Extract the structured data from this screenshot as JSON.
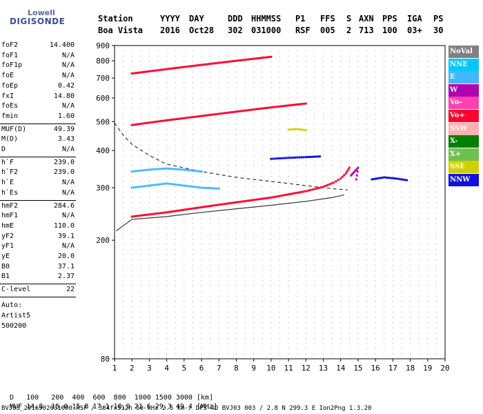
{
  "logo": {
    "line1": "Lowell",
    "line2": "DIGISONDE"
  },
  "header": {
    "row1": [
      "Station",
      "YYYY",
      "DAY",
      "DDD",
      "HHMMSS",
      "P1",
      "FFS",
      "S",
      "AXN",
      "PPS",
      "IGA",
      "PS"
    ],
    "row2": [
      "Boa Vista",
      "2016",
      "Oct28",
      "302",
      "031000",
      "RSF",
      "005",
      "2",
      "713",
      "100",
      "03+",
      "30"
    ]
  },
  "params": {
    "group1": [
      {
        "name": "foF2",
        "value": "14.400"
      },
      {
        "name": "foF1",
        "value": "N/A"
      },
      {
        "name": "foF1p",
        "value": "N/A"
      },
      {
        "name": "foE",
        "value": "N/A"
      },
      {
        "name": "foEp",
        "value": "0.42"
      },
      {
        "name": "fxI",
        "value": "14.80"
      },
      {
        "name": "foEs",
        "value": "N/A"
      },
      {
        "name": "fmin",
        "value": "1.60"
      }
    ],
    "group2": [
      {
        "name": "MUF(D)",
        "value": "49.39"
      },
      {
        "name": "M(D)",
        "value": "3.43"
      },
      {
        "name": "D",
        "value": "N/A"
      }
    ],
    "group3": [
      {
        "name": "h`F",
        "value": "239.0"
      },
      {
        "name": "h`F2",
        "value": "239.0"
      },
      {
        "name": "h`E",
        "value": "N/A"
      },
      {
        "name": "h`Es",
        "value": "N/A"
      }
    ],
    "group4": [
      {
        "name": "hmF2",
        "value": "284.6"
      },
      {
        "name": "hmF1",
        "value": "N/A"
      },
      {
        "name": "hmE",
        "value": "110.0"
      },
      {
        "name": "yF2",
        "value": "39.1"
      },
      {
        "name": "yF1",
        "value": "N/A"
      },
      {
        "name": "yE",
        "value": "20.0"
      },
      {
        "name": "B0",
        "value": "37.1"
      },
      {
        "name": "B1",
        "value": "2.37"
      }
    ],
    "group5": [
      {
        "name": "C-level",
        "value": "22"
      }
    ],
    "auto": [
      "Auto:",
      "Artist5",
      "500200"
    ]
  },
  "chart_data": {
    "type": "scatter",
    "title": "",
    "xlabel": "",
    "ylabel": "",
    "xlim": [
      1,
      20
    ],
    "ylim": [
      80,
      900
    ],
    "yscale": "log",
    "x_ticks": [
      1,
      2,
      3,
      4,
      5,
      6,
      7,
      8,
      9,
      10,
      11,
      12,
      13,
      14,
      15,
      16,
      17,
      18,
      19,
      20
    ],
    "y_ticks": [
      80,
      200,
      300,
      400,
      500,
      600,
      700,
      800,
      900
    ],
    "grid": true,
    "legend_position": "right",
    "legend": [
      {
        "label": "NoVal",
        "color": "#808080"
      },
      {
        "label": "NNE",
        "color": "#00c8ff"
      },
      {
        "label": "E",
        "color": "#40b8ff"
      },
      {
        "label": "W",
        "color": "#b000b0"
      },
      {
        "label": "Vo-",
        "color": "#ff40b0"
      },
      {
        "label": "Vo+",
        "color": "#ff0030"
      },
      {
        "label": "SSW",
        "color": "#ffb0b0"
      },
      {
        "label": "X-",
        "color": "#008000"
      },
      {
        "label": "X+",
        "color": "#70c050"
      },
      {
        "label": "SSE",
        "color": "#d0d000"
      },
      {
        "label": "NNW",
        "color": "#1010e0"
      }
    ],
    "traces": [
      {
        "name": "Vo+",
        "color": "#ff0030",
        "points": [
          [
            2.0,
            240
          ],
          [
            4.0,
            248
          ],
          [
            6.0,
            258
          ],
          [
            8.0,
            268
          ],
          [
            10.0,
            278
          ],
          [
            12.0,
            292
          ],
          [
            13.0,
            302
          ],
          [
            13.6,
            312
          ],
          [
            14.0,
            322
          ],
          [
            14.3,
            335
          ],
          [
            14.5,
            350
          ]
        ]
      },
      {
        "name": "Vo+",
        "color": "#ff0030",
        "points": [
          [
            2.0,
            487
          ],
          [
            4.0,
            505
          ],
          [
            6.0,
            522
          ],
          [
            8.0,
            540
          ],
          [
            10.0,
            558
          ],
          [
            12.0,
            575
          ]
        ]
      },
      {
        "name": "Vo+",
        "color": "#ff0030",
        "points": [
          [
            2.0,
            725
          ],
          [
            4.0,
            750
          ],
          [
            6.0,
            775
          ],
          [
            8.0,
            800
          ],
          [
            10.0,
            825
          ]
        ]
      },
      {
        "name": "E",
        "color": "#40b8ff",
        "points": [
          [
            2.0,
            300
          ],
          [
            3.0,
            305
          ],
          [
            4.0,
            310
          ],
          [
            5.0,
            305
          ],
          [
            6.0,
            300
          ],
          [
            7.0,
            298
          ]
        ]
      },
      {
        "name": "E",
        "color": "#40b8ff",
        "points": [
          [
            2.0,
            340
          ],
          [
            3.0,
            345
          ],
          [
            4.0,
            348
          ],
          [
            5.0,
            345
          ],
          [
            6.0,
            340
          ]
        ]
      },
      {
        "name": "W",
        "color": "#b000b0",
        "points": [
          [
            14.6,
            330
          ],
          [
            14.8,
            340
          ],
          [
            15.0,
            350
          ],
          [
            14.9,
            320
          ]
        ]
      },
      {
        "name": "NNW",
        "color": "#1010e0",
        "points": [
          [
            15.8,
            320
          ],
          [
            16.5,
            325
          ],
          [
            17.2,
            322
          ],
          [
            17.8,
            318
          ]
        ]
      },
      {
        "name": "NNW",
        "color": "#1010e0",
        "points": [
          [
            10.0,
            375
          ],
          [
            11.0,
            378
          ],
          [
            12.0,
            380
          ],
          [
            12.8,
            382
          ]
        ]
      },
      {
        "name": "SSE",
        "color": "#d0d000",
        "points": [
          [
            11.0,
            470
          ],
          [
            11.5,
            472
          ],
          [
            12.0,
            468
          ]
        ]
      }
    ],
    "profile_solid": [
      [
        1.1,
        215
      ],
      [
        2.0,
        235
      ],
      [
        4.0,
        240
      ],
      [
        6.0,
        248
      ],
      [
        8.0,
        255
      ],
      [
        10.0,
        262
      ],
      [
        12.0,
        270
      ],
      [
        13.5,
        278
      ],
      [
        14.2,
        284
      ]
    ],
    "profile_dashed": [
      [
        1.0,
        495
      ],
      [
        1.5,
        450
      ],
      [
        2.0,
        420
      ],
      [
        3.0,
        385
      ],
      [
        4.0,
        360
      ],
      [
        6.0,
        340
      ],
      [
        8.0,
        325
      ],
      [
        10.0,
        315
      ],
      [
        12.0,
        305
      ],
      [
        13.5,
        298
      ],
      [
        14.4,
        295
      ]
    ]
  },
  "bottom": {
    "row_d_label": "D",
    "row_d": [
      "100",
      "200",
      "400",
      "600",
      "800",
      "1000",
      "1500",
      "3000",
      "[km]"
    ],
    "row_muf_label": "MUF",
    "row_muf": [
      "14.8",
      "15.0",
      "15.8",
      "17.1",
      "18.9",
      "21.6",
      "29.3",
      "49.4",
      "[MHz]"
    ],
    "footer": "BVJ03_2016302031000.RSF / 384fx512h 50 kHz 2.5 km / DPS-4D BVJ03 003 / 2.8 N 299.3 E Ion2Png 1.3.20"
  }
}
